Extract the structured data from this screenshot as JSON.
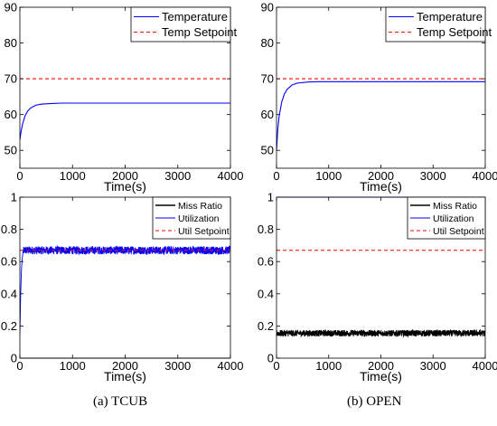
{
  "captions": {
    "left": "(a)  TCUB",
    "right": "(b)  OPEN"
  },
  "chart_data": [
    {
      "id": "tcub-temp",
      "type": "line",
      "xlabel": "Time(s)",
      "ylabel": "",
      "xlim": [
        0,
        4000
      ],
      "ylim": [
        45,
        90
      ],
      "xticks": [
        0,
        1000,
        2000,
        3000,
        4000
      ],
      "yticks": [
        50,
        60,
        70,
        80,
        90
      ],
      "legend": "top-right",
      "series": [
        {
          "name": "Temperature",
          "color": "#0000ff",
          "style": "solid",
          "x": [
            0,
            25,
            50,
            100,
            150,
            200,
            300,
            400,
            600,
            800,
            1000,
            1500,
            2000,
            3000,
            4000
          ],
          "y": [
            53,
            55.5,
            57.3,
            59.7,
            61,
            61.8,
            62.6,
            62.9,
            63.1,
            63.2,
            63.2,
            63.2,
            63.2,
            63.2,
            63.2
          ]
        },
        {
          "name": "Temp Setpoint",
          "color": "#ff0000",
          "style": "dashed",
          "x": [
            0,
            4000
          ],
          "y": [
            70,
            70
          ]
        }
      ]
    },
    {
      "id": "open-temp",
      "type": "line",
      "xlabel": "Time(s)",
      "ylabel": "",
      "xlim": [
        0,
        4000
      ],
      "ylim": [
        45,
        90
      ],
      "xticks": [
        0,
        1000,
        2000,
        3000,
        4000
      ],
      "yticks": [
        50,
        60,
        70,
        80,
        90
      ],
      "legend": "top-right",
      "series": [
        {
          "name": "Temperature",
          "color": "#0000ff",
          "style": "solid",
          "x": [
            0,
            25,
            50,
            100,
            150,
            200,
            300,
            400,
            600,
            800,
            1000,
            1500,
            2000,
            3000,
            4000
          ],
          "y": [
            50,
            56,
            59.5,
            63.5,
            65.7,
            67,
            68.3,
            68.8,
            69.1,
            69.2,
            69.2,
            69.2,
            69.2,
            69.2,
            69.2
          ]
        },
        {
          "name": "Temp Setpoint",
          "color": "#ff0000",
          "style": "dashed",
          "x": [
            0,
            4000
          ],
          "y": [
            70,
            70
          ]
        }
      ]
    },
    {
      "id": "tcub-util",
      "type": "line",
      "xlabel": "Time(s)",
      "ylabel": "",
      "xlim": [
        0,
        4000
      ],
      "ylim": [
        0,
        1
      ],
      "xticks": [
        0,
        1000,
        2000,
        3000,
        4000
      ],
      "yticks": [
        0,
        0.2,
        0.4,
        0.6,
        0.8,
        1
      ],
      "legend": "top-right",
      "series": [
        {
          "name": "Miss Ratio",
          "color": "#000000",
          "style": "solid",
          "x": [
            0,
            4000
          ],
          "y": [
            0,
            0
          ]
        },
        {
          "name": "Utilization",
          "color": "#0000ff",
          "style": "solid",
          "x": [
            0,
            15,
            30,
            45,
            60,
            80,
            4000
          ],
          "y": [
            0.15,
            0.4,
            0.55,
            0.62,
            0.66,
            0.67,
            0.67
          ],
          "noise": 0.025
        },
        {
          "name": "Util Setpoint",
          "color": "#ff0000",
          "style": "dashed",
          "x": [
            0,
            4000
          ],
          "y": [
            0.67,
            0.67
          ]
        }
      ]
    },
    {
      "id": "open-util",
      "type": "line",
      "xlabel": "Time(s)",
      "ylabel": "",
      "xlim": [
        0,
        4000
      ],
      "ylim": [
        0,
        1
      ],
      "xticks": [
        0,
        1000,
        2000,
        3000,
        4000
      ],
      "yticks": [
        0,
        0.2,
        0.4,
        0.6,
        0.8,
        1
      ],
      "legend": "top-right",
      "series": [
        {
          "name": "Miss Ratio",
          "color": "#000000",
          "style": "solid",
          "x": [
            0,
            4000
          ],
          "y": [
            0.155,
            0.155
          ],
          "noise": 0.02
        },
        {
          "name": "Utilization",
          "color": "#0000ff",
          "style": "solid",
          "x": [
            0,
            4000
          ],
          "y": [
            1,
            1
          ]
        },
        {
          "name": "Util Setpoint",
          "color": "#ff0000",
          "style": "dashed",
          "x": [
            0,
            4000
          ],
          "y": [
            0.67,
            0.67
          ]
        }
      ]
    }
  ]
}
